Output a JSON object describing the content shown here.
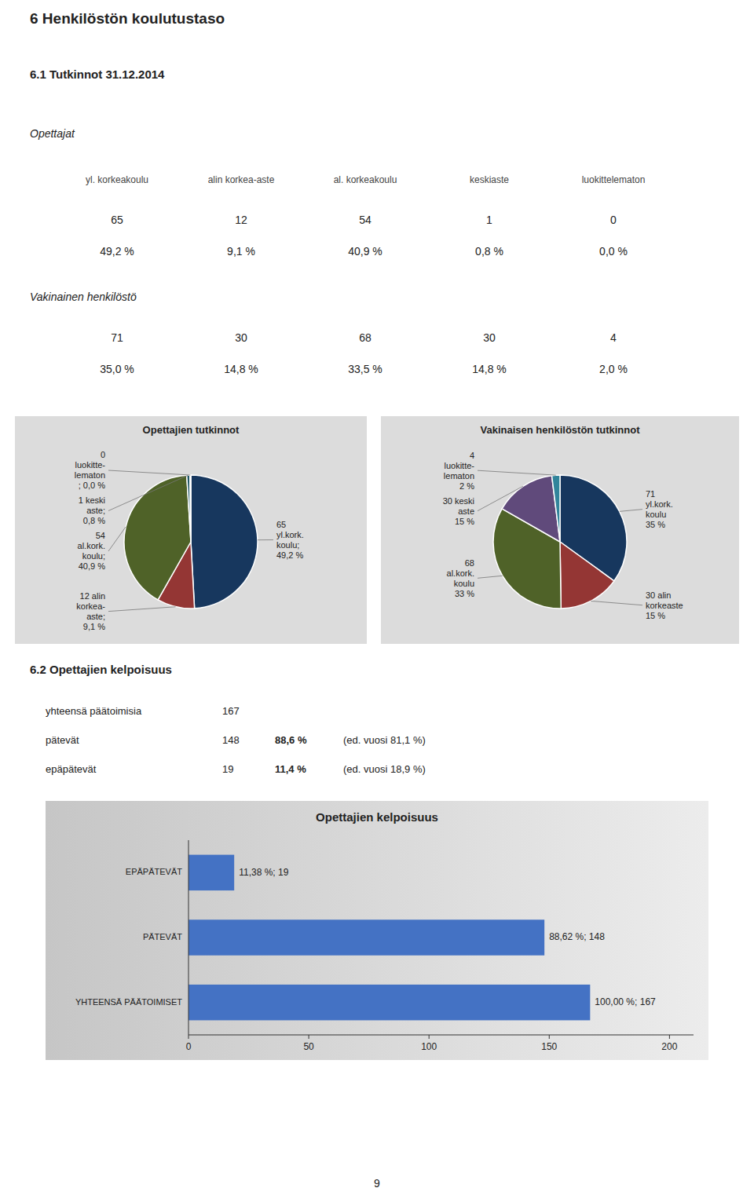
{
  "chart_data": [
    {
      "type": "table",
      "title": "6   Henkilöstön koulutustaso",
      "subtitle": "6.1   Tutkinnot 31.12.2014",
      "categories": [
        "yl. korkeakoulu",
        "alin korkea-aste",
        "al. korkeakoulu",
        "keskiaste",
        "luokittelematon"
      ],
      "series": [
        {
          "name": "Opettajat",
          "values": [
            65,
            12,
            54,
            1,
            0
          ],
          "share_labels": [
            "49,2 %",
            "9,1 %",
            "40,9 %",
            "0,8 %",
            "0,0 %"
          ]
        },
        {
          "name": "Vakinainen henkilöstö",
          "values": [
            71,
            30,
            68,
            30,
            4
          ],
          "share_labels": [
            "35,0 %",
            "14,8 %",
            "33,5 %",
            "14,8 %",
            "2,0 %"
          ]
        }
      ],
      "annotations": [
        {
          "text": "9"
        }
      ]
    },
    {
      "type": "pie",
      "title": "Opettajien tutkinnot",
      "values": [
        65,
        12,
        54,
        1,
        0.3
      ],
      "value_labels": [
        "65\nyl.kork.\nkoulu;\n49,2 %",
        "12 alin\nkorkea-\naste;\n9,1 %",
        "54\nal.kork.\nkoulu;\n40,9 %",
        "1 keski\naste;\n0,8 %",
        "0\nluokitte-\nlematon\n; 0,0 %"
      ],
      "colors": [
        "#17375E",
        "#943634",
        "#4F6228",
        "#215868",
        "#1A3A3A"
      ],
      "data_labels": true
    },
    {
      "type": "pie",
      "title": "Vakinaisen henkilöstön tutkinnot",
      "values": [
        71,
        30,
        68,
        30,
        4
      ],
      "value_labels": [
        "71\nyl.kork.\nkoulu\n35 %",
        "30 alin\nkorkeaste\n15 %",
        "68\nal.kork.\nkoulu\n33 %",
        "30 keski\naste\n15 %",
        "4\nluokitte-\nlematon\n2 %"
      ],
      "colors": [
        "#17375E",
        "#943634",
        "#4F6228",
        "#604A7B",
        "#31849B"
      ],
      "data_labels": true
    },
    {
      "type": "table",
      "title": "6.2   Opettajien kelpoisuus",
      "categories": [
        "yhteensä päätoimisia",
        "pätevät",
        "epäpätevät"
      ],
      "values": [
        167,
        148,
        19
      ],
      "share_labels": [
        null,
        "88,6 %",
        "11,4 %"
      ],
      "annotations": [
        {
          "text": "(ed. vuosi 81,1 %)",
          "category": "pätevät"
        },
        {
          "text": "(ed. vuosi 18,9 %)",
          "category": "epäpätevät"
        }
      ]
    },
    {
      "type": "bar",
      "orientation": "horizontal",
      "title": "Opettajien kelpoisuus",
      "categories": [
        "EPÄPÄTEVÄT",
        "PÄTEVÄT",
        "YHTEENSÄ PÄÄTOIMISET"
      ],
      "values": [
        19,
        148,
        167
      ],
      "value_labels": [
        "11,38 %; 19",
        "88,62 %; 148",
        "100,00 %; 167"
      ],
      "color": "#4472C4",
      "xlim": [
        0,
        210
      ],
      "xticks": [
        0,
        50,
        100,
        150,
        200
      ],
      "grid": false,
      "data_labels": true
    }
  ]
}
